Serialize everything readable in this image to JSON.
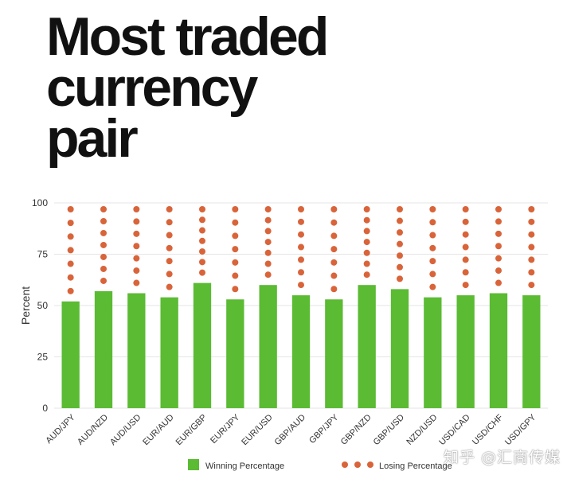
{
  "title_lines": [
    "Most traded",
    "currency",
    "pair"
  ],
  "watermark": "知乎 @汇商传媒",
  "colors": {
    "winning": "#5bbb33",
    "losing": "#d9643a",
    "grid": "#e6e6e6",
    "axis_text": "#333333"
  },
  "chart_data": {
    "type": "bar",
    "title": "",
    "xlabel": "",
    "ylabel": "Percent",
    "ylim": [
      0,
      100
    ],
    "yticks": [
      0,
      25,
      50,
      75,
      100
    ],
    "grid": true,
    "legend_position": "bottom",
    "categories": [
      "AUD/JPY",
      "AUD/NZD",
      "AUD/USD",
      "EUR/AUD",
      "EUR/GBP",
      "EUR/JPY",
      "EUR/USD",
      "GBP/AUD",
      "GBP/JPY",
      "GBP/NZD",
      "GBP/USD",
      "NZD/USD",
      "USD/CAD",
      "USD/CHF",
      "USD/GPY"
    ],
    "series": [
      {
        "name": "Winning Percentage",
        "values": [
          52,
          57,
          56,
          54,
          61,
          53,
          60,
          55,
          53,
          60,
          58,
          54,
          55,
          56,
          55
        ]
      },
      {
        "name": "Losing Percentage",
        "values": [
          48,
          43,
          44,
          46,
          39,
          47,
          40,
          45,
          47,
          40,
          42,
          46,
          45,
          44,
          45
        ]
      }
    ]
  }
}
